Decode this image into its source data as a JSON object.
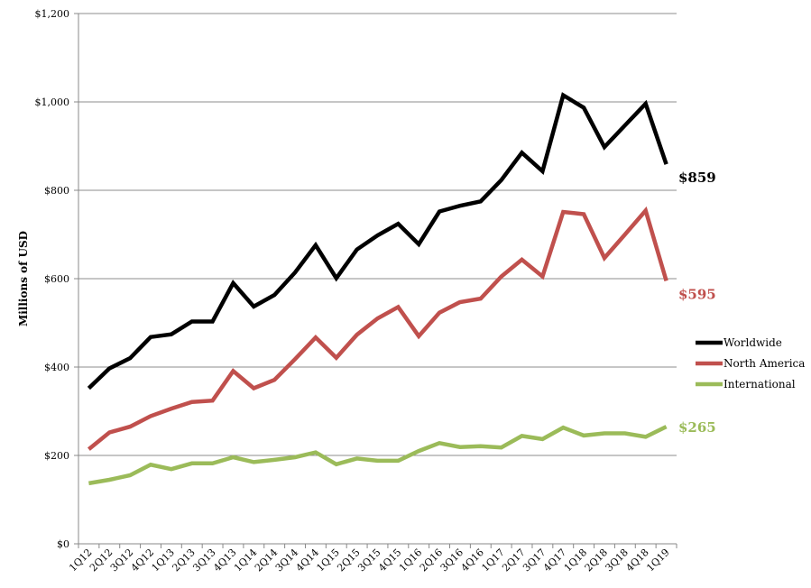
{
  "chart_data": {
    "type": "line",
    "ylabel": "Millions of USD",
    "ylim": [
      0,
      1200
    ],
    "y_ticks": [
      "$0",
      "$200",
      "$400",
      "$600",
      "$800",
      "$1,000",
      "$1,200"
    ],
    "y_tick_values": [
      0,
      200,
      400,
      600,
      800,
      1000,
      1200
    ],
    "grid": "horizontal",
    "legend_position": "right",
    "categories": [
      "1Q12",
      "2Q12",
      "3Q12",
      "4Q12",
      "1Q13",
      "2Q13",
      "3Q13",
      "4Q13",
      "1Q14",
      "2Q14",
      "3Q14",
      "4Q14",
      "1Q15",
      "2Q15",
      "3Q15",
      "4Q15",
      "1Q16",
      "2Q16",
      "3Q16",
      "4Q16",
      "1Q17",
      "2Q17",
      "3Q17",
      "4Q17",
      "1Q18",
      "2Q18",
      "3Q18",
      "4Q18",
      "1Q19"
    ],
    "series": [
      {
        "name": "Worldwide",
        "color": "#000000",
        "values": [
          352,
          397,
          420,
          468,
          474,
          503,
          503,
          590,
          537,
          563,
          614,
          676,
          601,
          666,
          698,
          724,
          678,
          752,
          765,
          775,
          823,
          885,
          843,
          1015,
          987,
          898,
          947,
          996,
          859
        ],
        "end_label": "$859"
      },
      {
        "name": "North America",
        "color": "#c0504d",
        "values": [
          214,
          252,
          265,
          289,
          306,
          321,
          324,
          391,
          352,
          371,
          418,
          467,
          421,
          473,
          510,
          536,
          470,
          523,
          547,
          555,
          605,
          643,
          605,
          751,
          746,
          647,
          700,
          754,
          595
        ],
        "end_label": "$595"
      },
      {
        "name": "International",
        "color": "#9bbb59",
        "values": [
          137,
          145,
          155,
          179,
          169,
          182,
          182,
          196,
          185,
          190,
          196,
          207,
          180,
          193,
          188,
          188,
          210,
          228,
          219,
          221,
          218,
          244,
          237,
          263,
          245,
          250,
          250,
          242,
          265
        ],
        "end_label": "$265"
      }
    ]
  }
}
